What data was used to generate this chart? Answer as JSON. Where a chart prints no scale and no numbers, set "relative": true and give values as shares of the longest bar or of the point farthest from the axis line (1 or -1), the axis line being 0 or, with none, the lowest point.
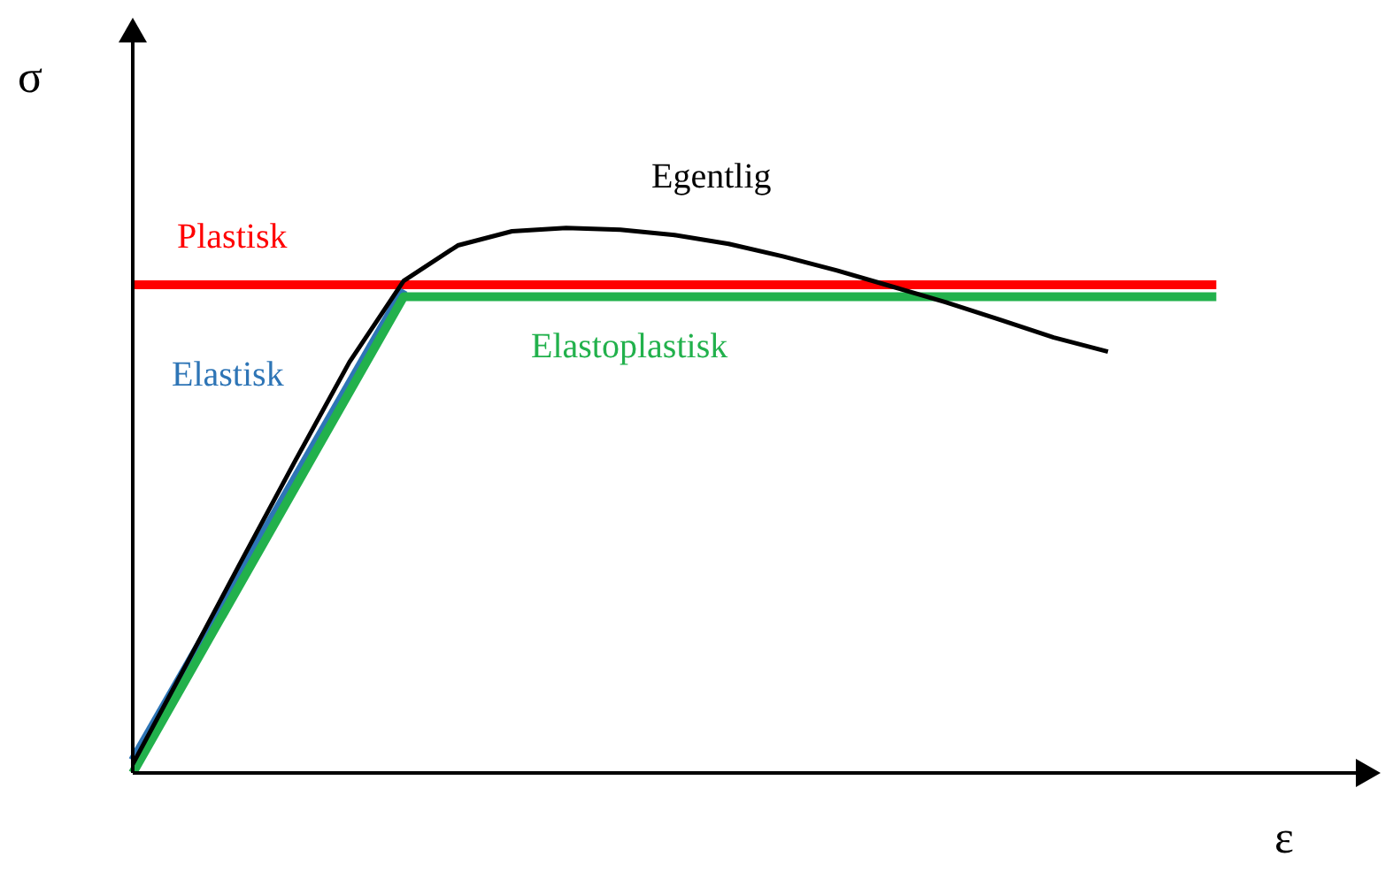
{
  "chart_data": {
    "type": "line",
    "xlabel": "ε",
    "ylabel": "σ",
    "relative": true,
    "legend": false,
    "grid": false,
    "marker": "none",
    "line_style": "solid",
    "categories": [
      null,
      null,
      null,
      null,
      null,
      null,
      null,
      null,
      null,
      null,
      null,
      null,
      null,
      null,
      null,
      null,
      null,
      null,
      null,
      null,
      null,
      null,
      null,
      null
    ],
    "series": [
      {
        "name": "Plastisk",
        "color": "#ff0000",
        "values": [
          0.896,
          null,
          null,
          null,
          null,
          null,
          null,
          null,
          null,
          null,
          null,
          null,
          null,
          null,
          null,
          null,
          null,
          null,
          null,
          null,
          0.896,
          null,
          null,
          null
        ]
      },
      {
        "name": "Elastisk",
        "color": "#2e75b6",
        "values": [
          0.023,
          null,
          null,
          null,
          null,
          0.887,
          null,
          null,
          null,
          null,
          null,
          null,
          null,
          null,
          null,
          null,
          null,
          null,
          null,
          null,
          null,
          null,
          null,
          null
        ]
      },
      {
        "name": "Elastoplastisk",
        "color": "#22b14c",
        "values": [
          0,
          null,
          null,
          null,
          null,
          0.874,
          null,
          null,
          null,
          null,
          null,
          null,
          null,
          null,
          null,
          null,
          null,
          null,
          null,
          null,
          0.874,
          null,
          null,
          null
        ]
      },
      {
        "name": "Egentlig",
        "color": "#000000",
        "values": [
          0.016,
          0.201,
          0.388,
          0.573,
          0.754,
          0.903,
          0.968,
          0.994,
          1,
          0.997,
          0.987,
          0.971,
          0.948,
          0.922,
          0.893,
          0.864,
          0.832,
          0.799,
          0.773,
          null,
          null,
          null,
          null,
          null
        ]
      }
    ]
  }
}
